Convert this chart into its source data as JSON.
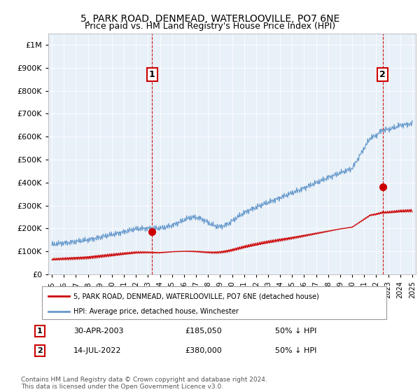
{
  "title": "5, PARK ROAD, DENMEAD, WATERLOOVILLE, PO7 6NE",
  "subtitle": "Price paid vs. HM Land Registry's House Price Index (HPI)",
  "legend_house": "5, PARK ROAD, DENMEAD, WATERLOOVILLE, PO7 6NE (detached house)",
  "legend_hpi": "HPI: Average price, detached house, Winchester",
  "annotation1_label": "1",
  "annotation1_date": "30-APR-2003",
  "annotation1_price": "£185,050",
  "annotation1_hpi": "50% ↓ HPI",
  "annotation2_label": "2",
  "annotation2_date": "14-JUL-2022",
  "annotation2_price": "£380,000",
  "annotation2_hpi": "50% ↓ HPI",
  "footer": "Contains HM Land Registry data © Crown copyright and database right 2024.\nThis data is licensed under the Open Government Licence v3.0.",
  "house_color": "#cc0000",
  "hpi_color": "#6699cc",
  "chart_bg": "#e8f0f8",
  "ylim_min": 0,
  "ylim_max": 1050000,
  "sale1_year": 2003.33,
  "sale1_price": 185050,
  "sale2_year": 2022.54,
  "sale2_price": 380000
}
